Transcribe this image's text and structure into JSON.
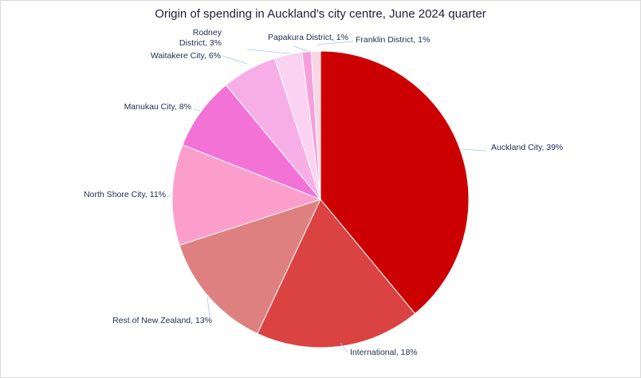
{
  "chart_data": {
    "type": "pie",
    "title": "Origin of spending in Auckland's city centre, June 2024 quarter",
    "start_angle_deg": 0,
    "direction": "clockwise",
    "slices": [
      {
        "label": "Auckland City, 39%",
        "name": "Auckland City",
        "value": 39,
        "color": "#cc0000"
      },
      {
        "label": "International, 18%",
        "name": "International",
        "value": 18,
        "color": "#db4242"
      },
      {
        "label": "Rest of New Zealand, 13%",
        "name": "Rest of New Zealand",
        "value": 13,
        "color": "#df8080"
      },
      {
        "label": "North Shore City, 11%",
        "name": "North Shore City",
        "value": 11,
        "color": "#fb9ecb"
      },
      {
        "label": "Manukau City, 8%",
        "name": "Manukau City",
        "value": 8,
        "color": "#f272d6"
      },
      {
        "label": "Waitakere City, 6%",
        "name": "Waitakere City",
        "value": 6,
        "color": "#f7aee6"
      },
      {
        "label": "Rodney District, 3%",
        "name": "Rodney District",
        "value": 3,
        "color": "#fbd2f1"
      },
      {
        "label": "Papakura District, 1%",
        "name": "Papakura District",
        "value": 1,
        "color": "#f79fdd"
      },
      {
        "label": "Franklin District, 1%",
        "name": "Franklin District",
        "value": 1,
        "color": "#fad6e4"
      }
    ]
  }
}
